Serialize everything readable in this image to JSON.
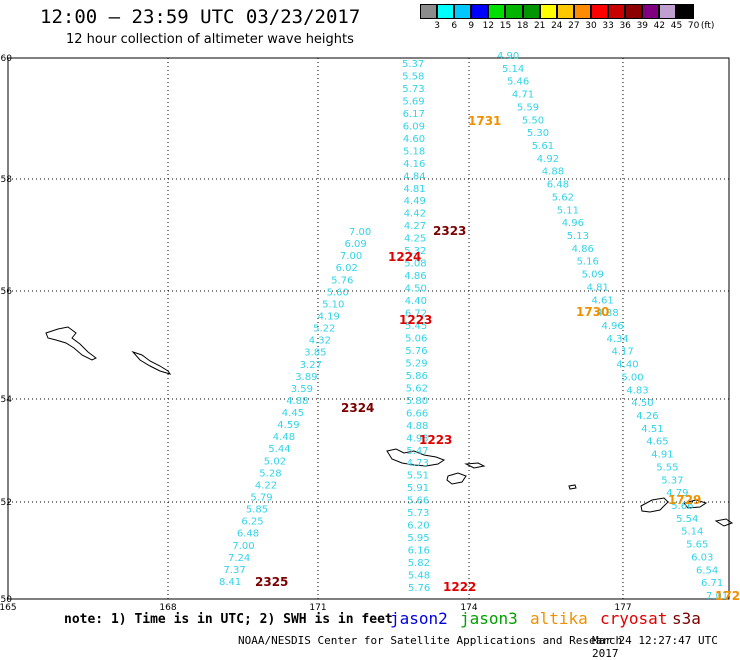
{
  "header": {
    "title": "12:00 – 23:59 UTC 03/23/2017",
    "subtitle": "12 hour collection of altimeter wave heights"
  },
  "colorbar": {
    "unit": "(ft)",
    "labels": [
      "3",
      "6",
      "9",
      "12",
      "15",
      "18",
      "21",
      "24",
      "27",
      "30",
      "33",
      "36",
      "39",
      "42",
      "45",
      "70"
    ],
    "colors": [
      "#8c8c8c",
      "#00ffff",
      "#00c8ff",
      "#0000ff",
      "#00e000",
      "#00b400",
      "#009600",
      "#ffff00",
      "#ffc800",
      "#ff8c00",
      "#ff0000",
      "#c80000",
      "#8c0000",
      "#800080",
      "#c0a0d0",
      "#000000"
    ]
  },
  "axes": {
    "x_ticks": [
      "165",
      "168",
      "171",
      "174",
      "177"
    ],
    "y_ticks": [
      "60",
      "58",
      "56",
      "54",
      "52",
      "50"
    ]
  },
  "tracks": {
    "cyan_color": "#33d4e8",
    "t1": [
      "5.37",
      "5.58",
      "5.73",
      "5.69",
      "6.17",
      "6.09",
      "4.60",
      "5.18",
      "4.16",
      "4.84",
      "4.81",
      "4.49",
      "4.42",
      "4.27",
      "4.25",
      "5.32",
      "5.08",
      "4.86",
      "4.50",
      "4.40",
      "6.72",
      "5.45",
      "5.06",
      "5.76",
      "5.29",
      "5.86",
      "5.62",
      "5.80",
      "6.66",
      "4.88",
      "4.93",
      "5.47",
      "4.73",
      "5.51",
      "5.91",
      "5.66",
      "5.73",
      "6.20",
      "5.95",
      "6.16",
      "5.82",
      "5.48",
      "5.76"
    ],
    "t2": [
      "7.00",
      "6.09",
      "7.00",
      "6.02",
      "5.76",
      "5.60",
      "5.10",
      "4.19",
      "5.22",
      "4.32",
      "3.85",
      "3.27",
      "3.89",
      "3.59",
      "4.88",
      "4.45",
      "4.59",
      "4.48",
      "5.44",
      "5.02",
      "5.28",
      "4.22",
      "5.79",
      "5.85",
      "6.25",
      "6.48",
      "7.00",
      "7.24",
      "7.37",
      "8.41"
    ],
    "t3": [
      "4.90",
      "5.14",
      "5.46",
      "4.71",
      "5.59",
      "5.50",
      "5.30",
      "5.61",
      "4.92",
      "4.88",
      "6.48",
      "5.62",
      "5.11",
      "4.96",
      "5.13",
      "4.86",
      "5.16",
      "5.09",
      "4.81",
      "4.61",
      "4.38",
      "4.96",
      "4.34",
      "4.17",
      "4.40",
      "5.00",
      "4.83",
      "4.50",
      "4.26",
      "4.51",
      "4.65",
      "4.91",
      "5.55",
      "5.37",
      "4.79",
      "5.66",
      "5.54",
      "5.14",
      "5.65",
      "6.03",
      "6.54",
      "6.71",
      "7.01"
    ]
  },
  "pass_labels": [
    {
      "text": "1731",
      "color": "#f09000"
    },
    {
      "text": "2323",
      "color": "#7a0000"
    },
    {
      "text": "1224",
      "color": "#e00000"
    },
    {
      "text": "1223",
      "color": "#e00000"
    },
    {
      "text": "1730",
      "color": "#f09000"
    },
    {
      "text": "2324",
      "color": "#7a0000"
    },
    {
      "text": "1223",
      "color": "#e00000"
    },
    {
      "text": "1729",
      "color": "#f09000"
    },
    {
      "text": "2325",
      "color": "#7a0000"
    },
    {
      "text": "1222",
      "color": "#e00000"
    },
    {
      "text": "172",
      "color": "#f09000"
    }
  ],
  "footer": {
    "note": "note: 1) Time is in UTC; 2) SWH is in feet",
    "legend": [
      {
        "label": "jason2",
        "color": "#0000e0"
      },
      {
        "label": "jason3",
        "color": "#00a000"
      },
      {
        "label": "altika",
        "color": "#f09000"
      },
      {
        "label": "cryosat",
        "color": "#e00000"
      },
      {
        "label": "s3a",
        "color": "#7a0000"
      }
    ],
    "credit": "NOAA/NESDIS Center for Satellite Applications and Research",
    "timestamp": "Mar 24 12:27:47 UTC 2017"
  }
}
